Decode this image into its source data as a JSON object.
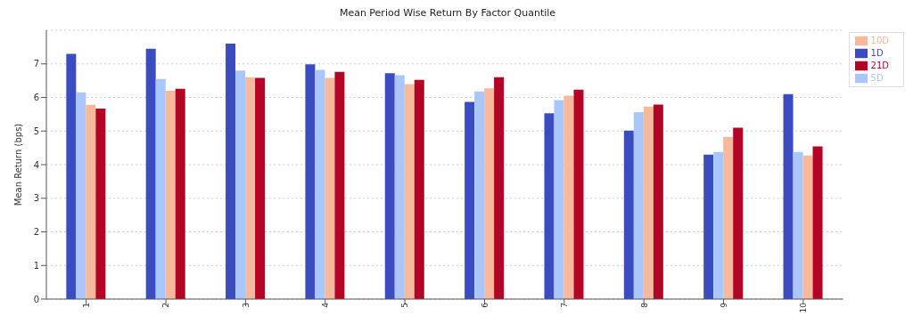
{
  "chart_data": {
    "type": "bar",
    "title": "Mean Period Wise Return By Factor Quantile",
    "ylabel": "Mean Return (bps)",
    "categories": [
      "1",
      "2",
      "3",
      "4",
      "5",
      "6",
      "7",
      "8",
      "9",
      "10"
    ],
    "series": [
      {
        "name": "1D",
        "color": "#3b4cc0",
        "values": [
          7.3,
          7.45,
          7.6,
          6.99,
          6.72,
          5.87,
          5.53,
          5.01,
          4.3,
          6.1
        ]
      },
      {
        "name": "5D",
        "color": "#aac7fd",
        "values": [
          6.15,
          6.55,
          6.8,
          6.82,
          6.66,
          6.18,
          5.92,
          5.56,
          4.38,
          4.38
        ]
      },
      {
        "name": "10D",
        "color": "#f7b89c",
        "values": [
          5.78,
          6.2,
          6.6,
          6.58,
          6.4,
          6.27,
          6.05,
          5.73,
          4.83,
          4.27
        ]
      },
      {
        "name": "21D",
        "color": "#b40426",
        "values": [
          5.67,
          6.26,
          6.58,
          6.76,
          6.52,
          6.6,
          6.23,
          5.79,
          5.1,
          4.54
        ]
      }
    ],
    "ylim": [
      0,
      8
    ],
    "yticks": [
      0,
      1,
      2,
      3,
      4,
      5,
      6,
      7
    ],
    "grid": "y",
    "legend": "top right"
  }
}
